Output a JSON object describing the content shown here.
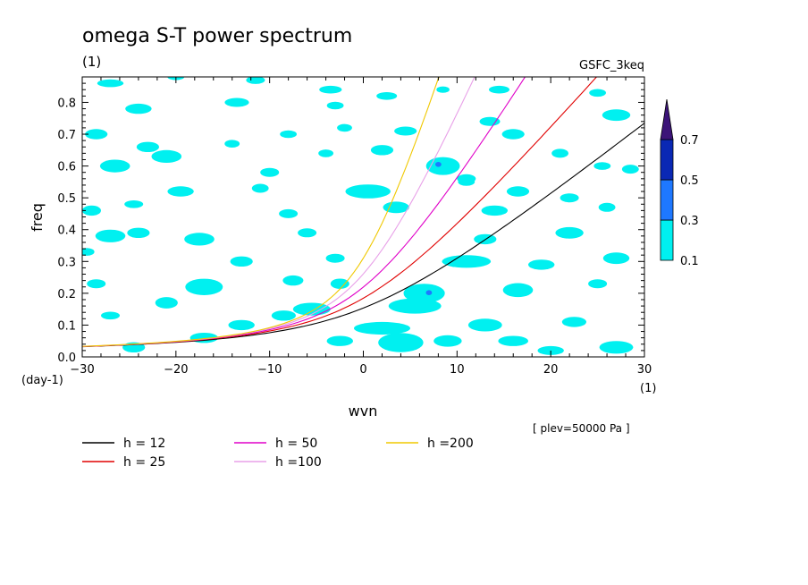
{
  "chart_data": {
    "type": "contour",
    "title": "omega S-T power spectrum",
    "subtitle_left": "(1)",
    "subtitle_right": "GSFC_3keq",
    "xlabel": "wvn",
    "ylabel": "freq",
    "x_unit": "(1)",
    "y_unit": "(day-1)",
    "plev_note": "[ plev=50000 Pa ]",
    "xlim": [
      -30,
      30
    ],
    "ylim": [
      0,
      0.88
    ],
    "x_ticks": [
      -30,
      -20,
      -10,
      0,
      10,
      20,
      30
    ],
    "y_ticks": [
      0.0,
      0.1,
      0.2,
      0.3,
      0.4,
      0.5,
      0.6,
      0.7,
      0.8
    ],
    "colorbar": {
      "levels": [
        0.1,
        0.3,
        0.5,
        0.7
      ],
      "labels": [
        "0.1",
        "0.3",
        "0.5",
        "0.7"
      ],
      "colors": [
        "#00f0f0",
        "#1e78ff",
        "#0a28b4",
        "#3c1478"
      ]
    },
    "series": [
      {
        "name": "h = 12",
        "h": 12,
        "color": "#000000"
      },
      {
        "name": "h = 25",
        "h": 25,
        "color": "#e00000"
      },
      {
        "name": "h = 50",
        "h": 50,
        "color": "#e000c8"
      },
      {
        "name": "h =100",
        "h": 100,
        "color": "#e8a0e8"
      },
      {
        "name": "h =200",
        "h": 200,
        "color": "#f0c800"
      }
    ],
    "blobs": [
      {
        "x": -27.0,
        "y": 0.86,
        "w": 1.4,
        "h": 0.012,
        "lvl": 0
      },
      {
        "x": -20.0,
        "y": 0.88,
        "w": 0.9,
        "h": 0.01,
        "lvl": 0
      },
      {
        "x": -11.5,
        "y": 0.87,
        "w": 1.0,
        "h": 0.012,
        "lvl": 0
      },
      {
        "x": -3.5,
        "y": 0.84,
        "w": 1.2,
        "h": 0.012,
        "lvl": 0
      },
      {
        "x": 2.5,
        "y": 0.82,
        "w": 1.1,
        "h": 0.012,
        "lvl": 0
      },
      {
        "x": 8.5,
        "y": 0.84,
        "w": 0.7,
        "h": 0.01,
        "lvl": 0
      },
      {
        "x": 14.5,
        "y": 0.84,
        "w": 1.1,
        "h": 0.012,
        "lvl": 0
      },
      {
        "x": 25.0,
        "y": 0.83,
        "w": 0.9,
        "h": 0.012,
        "lvl": 0
      },
      {
        "x": -24.0,
        "y": 0.78,
        "w": 1.4,
        "h": 0.016,
        "lvl": 0
      },
      {
        "x": -13.5,
        "y": 0.8,
        "w": 1.3,
        "h": 0.014,
        "lvl": 0
      },
      {
        "x": -3.0,
        "y": 0.79,
        "w": 0.9,
        "h": 0.012,
        "lvl": 0
      },
      {
        "x": 27.0,
        "y": 0.76,
        "w": 1.5,
        "h": 0.018,
        "lvl": 0
      },
      {
        "x": -28.5,
        "y": 0.7,
        "w": 1.2,
        "h": 0.016,
        "lvl": 0
      },
      {
        "x": -8.0,
        "y": 0.7,
        "w": 0.9,
        "h": 0.012,
        "lvl": 0
      },
      {
        "x": -2.0,
        "y": 0.72,
        "w": 0.8,
        "h": 0.012,
        "lvl": 0
      },
      {
        "x": 4.5,
        "y": 0.71,
        "w": 1.2,
        "h": 0.014,
        "lvl": 0
      },
      {
        "x": 13.5,
        "y": 0.74,
        "w": 1.1,
        "h": 0.014,
        "lvl": 0
      },
      {
        "x": 16.0,
        "y": 0.7,
        "w": 1.2,
        "h": 0.016,
        "lvl": 0
      },
      {
        "x": -23.0,
        "y": 0.66,
        "w": 1.2,
        "h": 0.016,
        "lvl": 0
      },
      {
        "x": -21.0,
        "y": 0.63,
        "w": 1.6,
        "h": 0.02,
        "lvl": 0
      },
      {
        "x": -14.0,
        "y": 0.67,
        "w": 0.8,
        "h": 0.012,
        "lvl": 0
      },
      {
        "x": -4.0,
        "y": 0.64,
        "w": 0.8,
        "h": 0.012,
        "lvl": 0
      },
      {
        "x": 2.0,
        "y": 0.65,
        "w": 1.2,
        "h": 0.016,
        "lvl": 0
      },
      {
        "x": 21.0,
        "y": 0.64,
        "w": 0.9,
        "h": 0.014,
        "lvl": 0
      },
      {
        "x": -26.5,
        "y": 0.6,
        "w": 1.6,
        "h": 0.02,
        "lvl": 0
      },
      {
        "x": -10.0,
        "y": 0.58,
        "w": 1.0,
        "h": 0.014,
        "lvl": 0
      },
      {
        "x": 8.5,
        "y": 0.6,
        "w": 1.8,
        "h": 0.028,
        "lvl": 0
      },
      {
        "x": 11.0,
        "y": 0.56,
        "w": 1.0,
        "h": 0.014,
        "lvl": 0
      },
      {
        "x": 25.5,
        "y": 0.6,
        "w": 0.9,
        "h": 0.012,
        "lvl": 0
      },
      {
        "x": 28.5,
        "y": 0.59,
        "w": 0.9,
        "h": 0.014,
        "lvl": 0
      },
      {
        "x": 0.5,
        "y": 0.52,
        "w": 2.4,
        "h": 0.022,
        "lvl": 0
      },
      {
        "x": -19.5,
        "y": 0.52,
        "w": 1.4,
        "h": 0.016,
        "lvl": 0
      },
      {
        "x": -11.0,
        "y": 0.53,
        "w": 0.9,
        "h": 0.014,
        "lvl": 0
      },
      {
        "x": 11.0,
        "y": 0.55,
        "w": 0.9,
        "h": 0.012,
        "lvl": 0
      },
      {
        "x": 16.5,
        "y": 0.52,
        "w": 1.2,
        "h": 0.016,
        "lvl": 0
      },
      {
        "x": 22.0,
        "y": 0.5,
        "w": 1.0,
        "h": 0.014,
        "lvl": 0
      },
      {
        "x": -29.0,
        "y": 0.46,
        "w": 1.0,
        "h": 0.016,
        "lvl": 0
      },
      {
        "x": -24.5,
        "y": 0.48,
        "w": 1.0,
        "h": 0.012,
        "lvl": 0
      },
      {
        "x": -8.0,
        "y": 0.45,
        "w": 1.0,
        "h": 0.014,
        "lvl": 0
      },
      {
        "x": 3.5,
        "y": 0.47,
        "w": 1.4,
        "h": 0.018,
        "lvl": 0
      },
      {
        "x": 14.0,
        "y": 0.46,
        "w": 1.4,
        "h": 0.016,
        "lvl": 0
      },
      {
        "x": 26.0,
        "y": 0.47,
        "w": 0.9,
        "h": 0.014,
        "lvl": 0
      },
      {
        "x": -27.0,
        "y": 0.38,
        "w": 1.6,
        "h": 0.02,
        "lvl": 0
      },
      {
        "x": -24.0,
        "y": 0.39,
        "w": 1.2,
        "h": 0.016,
        "lvl": 0
      },
      {
        "x": -17.5,
        "y": 0.37,
        "w": 1.6,
        "h": 0.02,
        "lvl": 0
      },
      {
        "x": -6.0,
        "y": 0.39,
        "w": 1.0,
        "h": 0.014,
        "lvl": 0
      },
      {
        "x": 13.0,
        "y": 0.37,
        "w": 1.2,
        "h": 0.016,
        "lvl": 0
      },
      {
        "x": 22.0,
        "y": 0.39,
        "w": 1.5,
        "h": 0.018,
        "lvl": 0
      },
      {
        "x": -29.5,
        "y": 0.33,
        "w": 0.8,
        "h": 0.012,
        "lvl": 0
      },
      {
        "x": -13.0,
        "y": 0.3,
        "w": 1.2,
        "h": 0.016,
        "lvl": 0
      },
      {
        "x": -3.0,
        "y": 0.31,
        "w": 1.0,
        "h": 0.014,
        "lvl": 0
      },
      {
        "x": 11.0,
        "y": 0.3,
        "w": 2.6,
        "h": 0.02,
        "lvl": 0
      },
      {
        "x": 19.0,
        "y": 0.29,
        "w": 1.4,
        "h": 0.016,
        "lvl": 0
      },
      {
        "x": 27.0,
        "y": 0.31,
        "w": 1.4,
        "h": 0.018,
        "lvl": 0
      },
      {
        "x": -28.5,
        "y": 0.23,
        "w": 1.0,
        "h": 0.014,
        "lvl": 0
      },
      {
        "x": -17.0,
        "y": 0.22,
        "w": 2.0,
        "h": 0.026,
        "lvl": 0
      },
      {
        "x": -7.5,
        "y": 0.24,
        "w": 1.1,
        "h": 0.016,
        "lvl": 0
      },
      {
        "x": -2.5,
        "y": 0.23,
        "w": 1.0,
        "h": 0.016,
        "lvl": 0
      },
      {
        "x": 6.5,
        "y": 0.2,
        "w": 2.2,
        "h": 0.03,
        "lvl": 0
      },
      {
        "x": 16.5,
        "y": 0.21,
        "w": 1.6,
        "h": 0.022,
        "lvl": 0
      },
      {
        "x": 25.0,
        "y": 0.23,
        "w": 1.0,
        "h": 0.014,
        "lvl": 0
      },
      {
        "x": -21.0,
        "y": 0.17,
        "w": 1.2,
        "h": 0.018,
        "lvl": 0
      },
      {
        "x": -5.5,
        "y": 0.15,
        "w": 2.0,
        "h": 0.02,
        "lvl": 0
      },
      {
        "x": 5.5,
        "y": 0.16,
        "w": 2.8,
        "h": 0.024,
        "lvl": 0
      },
      {
        "x": -27.0,
        "y": 0.13,
        "w": 1.0,
        "h": 0.012,
        "lvl": 0
      },
      {
        "x": -13.0,
        "y": 0.1,
        "w": 1.4,
        "h": 0.016,
        "lvl": 0
      },
      {
        "x": -8.5,
        "y": 0.13,
        "w": 1.3,
        "h": 0.016,
        "lvl": 0
      },
      {
        "x": 2.0,
        "y": 0.09,
        "w": 3.0,
        "h": 0.02,
        "lvl": 0
      },
      {
        "x": 13.0,
        "y": 0.1,
        "w": 1.8,
        "h": 0.02,
        "lvl": 0
      },
      {
        "x": 22.5,
        "y": 0.11,
        "w": 1.3,
        "h": 0.016,
        "lvl": 0
      },
      {
        "x": -17.0,
        "y": 0.06,
        "w": 1.5,
        "h": 0.016,
        "lvl": 0
      },
      {
        "x": -2.5,
        "y": 0.05,
        "w": 1.4,
        "h": 0.016,
        "lvl": 0
      },
      {
        "x": 4.0,
        "y": 0.045,
        "w": 2.4,
        "h": 0.03,
        "lvl": 0
      },
      {
        "x": 9.0,
        "y": 0.05,
        "w": 1.5,
        "h": 0.018,
        "lvl": 0
      },
      {
        "x": 16.0,
        "y": 0.05,
        "w": 1.6,
        "h": 0.016,
        "lvl": 0
      },
      {
        "x": 27.0,
        "y": 0.03,
        "w": 1.8,
        "h": 0.02,
        "lvl": 0
      },
      {
        "x": -24.5,
        "y": 0.03,
        "w": 1.2,
        "h": 0.016,
        "lvl": 0
      },
      {
        "x": 20.0,
        "y": 0.02,
        "w": 1.4,
        "h": 0.014,
        "lvl": 0
      },
      {
        "x": 8.0,
        "y": 0.605,
        "w": 0.32,
        "h": 0.008,
        "lvl": 1
      },
      {
        "x": 7.0,
        "y": 0.202,
        "w": 0.32,
        "h": 0.008,
        "lvl": 1
      }
    ]
  }
}
